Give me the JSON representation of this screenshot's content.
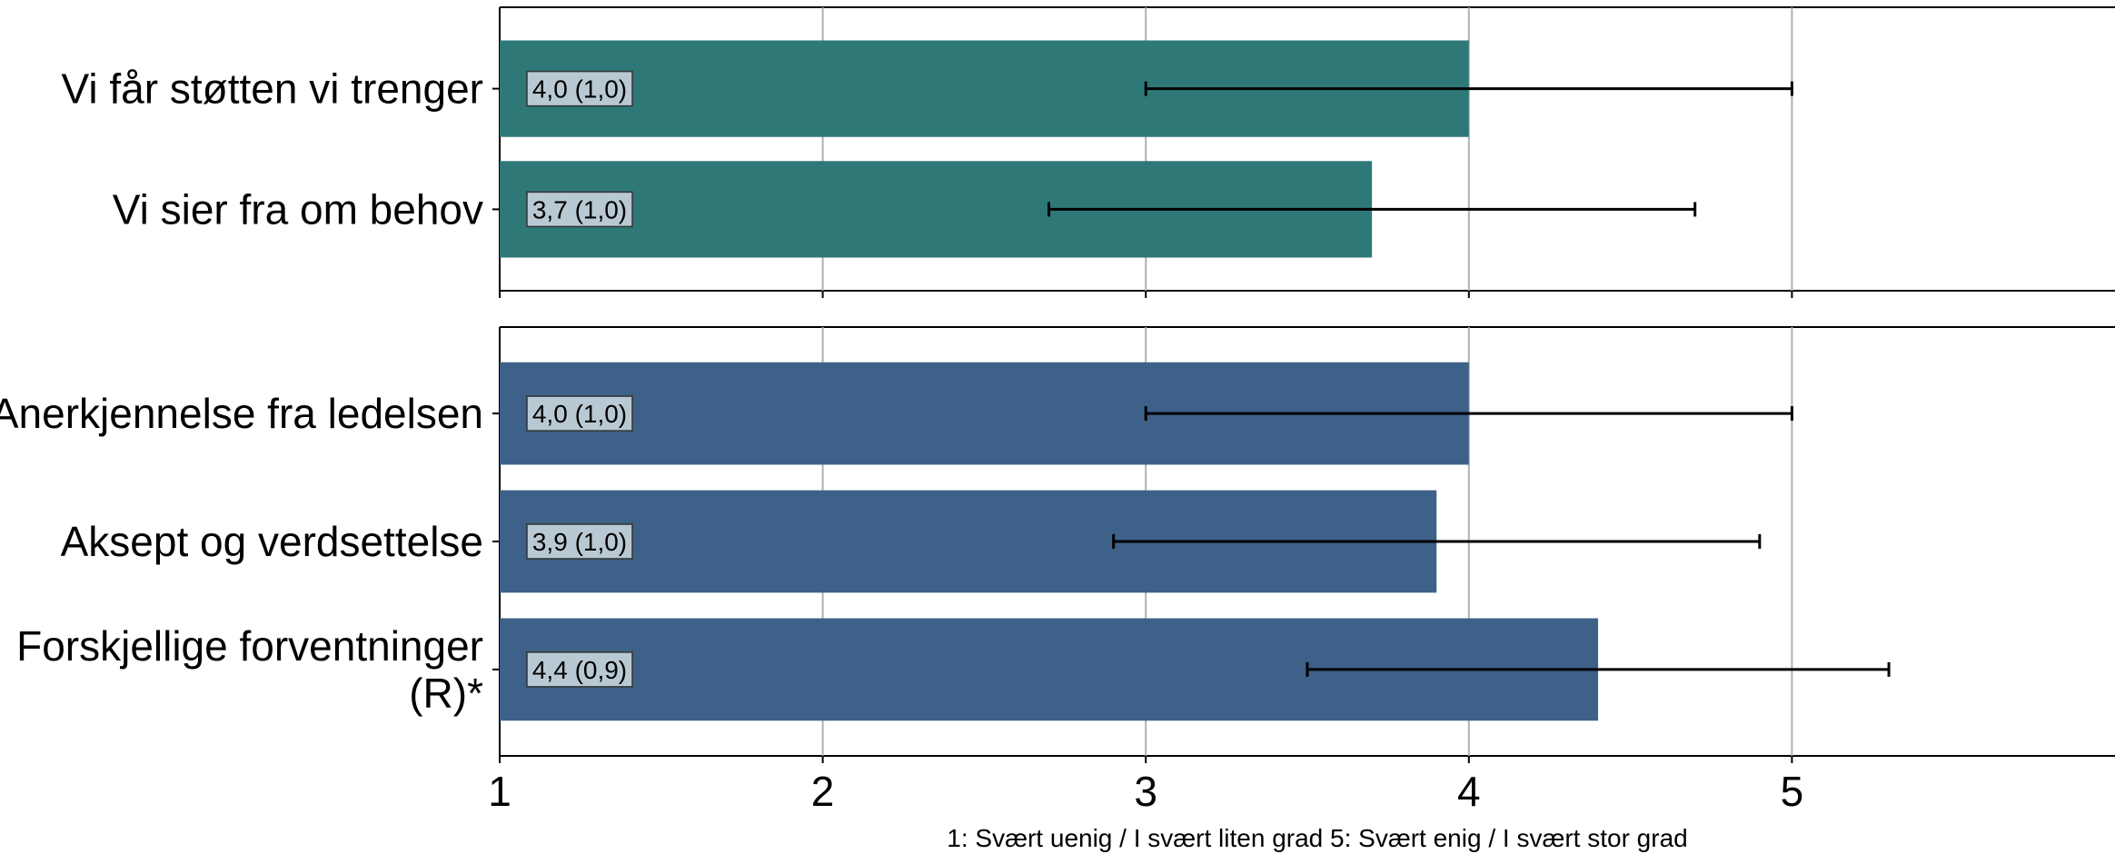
{
  "chart_data": {
    "type": "bar",
    "orientation": "horizontal",
    "xlim": [
      1,
      6
    ],
    "xticks": [
      1,
      2,
      3,
      4,
      5
    ],
    "grid": "vertical",
    "footnote": "1: Svært uenig / I svært liten grad   5: Svært enig / I svært stor grad",
    "panels": [
      {
        "color": "#2e7878",
        "bars": [
          {
            "label": "Vi får støtten vi trenger",
            "value": 4.0,
            "sd": 1.0,
            "value_label": "4,0 (1,0)"
          },
          {
            "label": "Vi sier fra om behov",
            "value": 3.7,
            "sd": 1.0,
            "value_label": "3,7 (1,0)"
          }
        ]
      },
      {
        "color": "#3e6189",
        "bars": [
          {
            "label": "Anerkjennelse fra ledelsen",
            "value": 4.0,
            "sd": 1.0,
            "value_label": "4,0 (1,0)"
          },
          {
            "label": "Aksept og verdsettelse",
            "value": 3.9,
            "sd": 1.0,
            "value_label": "3,9 (1,0)"
          },
          {
            "label": [
              "Forskjellige forventninger",
              "(R)*"
            ],
            "value": 4.4,
            "sd": 0.9,
            "value_label": "4,4 (0,9)"
          }
        ]
      }
    ]
  }
}
